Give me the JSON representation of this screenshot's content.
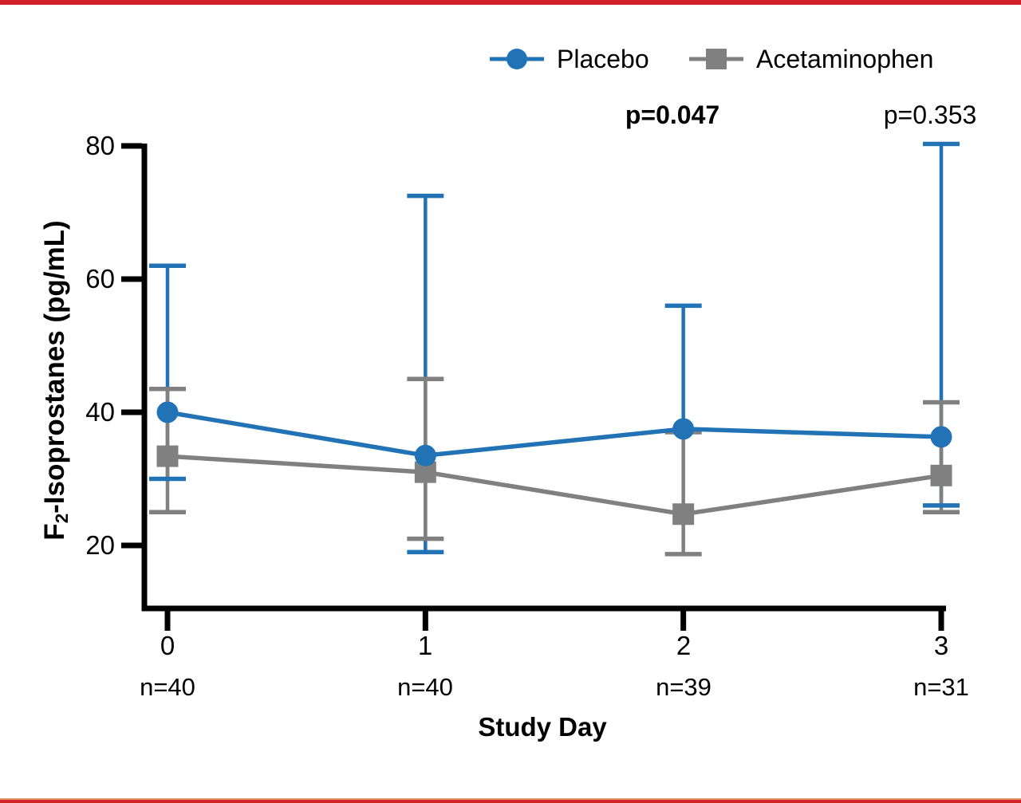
{
  "page": {
    "background": "#ffffff",
    "top_bar_color": "#d22128",
    "bottom_bar_color": "#d22128"
  },
  "chart_data": {
    "type": "line",
    "title": "",
    "xlabel": "Study Day",
    "ylabel": "F2-Isoprostanes (pg/mL)",
    "ylabel_parts": {
      "prefix": "F",
      "sub": "2",
      "rest": "-Isoprostanes (pg/mL)"
    },
    "x": [
      0,
      1,
      2,
      3
    ],
    "categories": [
      "0",
      "1",
      "2",
      "3"
    ],
    "n_labels": [
      "n=40",
      "n=40",
      "n=39",
      "n=31"
    ],
    "yticks": [
      20,
      40,
      60,
      80
    ],
    "ylim": [
      10.5,
      80
    ],
    "grid": false,
    "axis_color": "#000000",
    "legend": {
      "position": "top-center",
      "items": [
        {
          "label": "Placebo",
          "color": "#2273b6",
          "marker": "circle"
        },
        {
          "label": "Acetaminophen",
          "color": "#808080",
          "marker": "square"
        }
      ]
    },
    "annotations": [
      {
        "text": "p=0.047",
        "bold": true,
        "day": 2
      },
      {
        "text": "p=0.353",
        "bold": false,
        "day": 3
      }
    ],
    "series": [
      {
        "name": "Placebo",
        "color": "#2273b6",
        "marker": "circle",
        "values": [
          40.0,
          33.5,
          37.5,
          36.3
        ],
        "err_low": [
          30.0,
          19.0,
          null,
          26.0
        ],
        "err_high": [
          62.0,
          72.5,
          56.0,
          80.3
        ]
      },
      {
        "name": "Acetaminophen",
        "color": "#808080",
        "marker": "square",
        "values": [
          33.4,
          31.0,
          24.7,
          30.5
        ],
        "err_low": [
          25.0,
          21.0,
          18.7,
          25.0
        ],
        "err_high": [
          43.5,
          45.0,
          37.0,
          41.5
        ]
      }
    ]
  }
}
